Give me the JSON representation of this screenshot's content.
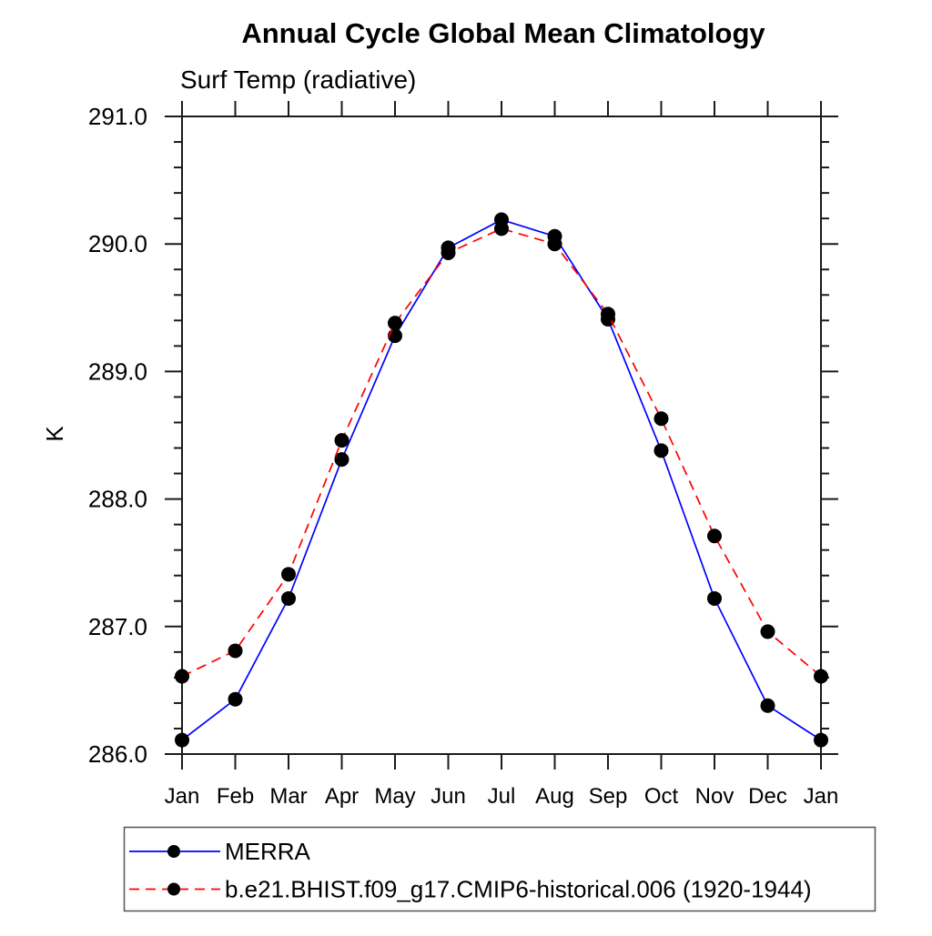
{
  "chart_data": {
    "type": "line",
    "title": "Annual Cycle Global Mean Climatology",
    "subtitle": "Surf Temp (radiative)",
    "ylabel": "K",
    "ylim": [
      286.0,
      291.0
    ],
    "ytick_interval": 1.0,
    "yminor_interval": 0.2,
    "grid": false,
    "legend_position": "bottom-left",
    "categories": [
      "Jan",
      "Feb",
      "Mar",
      "Apr",
      "May",
      "Jun",
      "Jul",
      "Aug",
      "Sep",
      "Oct",
      "Nov",
      "Dec",
      "Jan"
    ],
    "series": [
      {
        "name": "MERRA",
        "color": "#0000ff",
        "line_style": "solid",
        "marker": "filled-circle",
        "marker_color": "#000000",
        "values": [
          286.11,
          286.43,
          287.22,
          288.31,
          289.28,
          289.97,
          290.19,
          290.06,
          289.41,
          288.38,
          287.22,
          286.38,
          286.11
        ]
      },
      {
        "name": "b.e21.BHIST.f09_g17.CMIP6-historical.006 (1920-1944)",
        "color": "#ff0000",
        "line_style": "dashed",
        "marker": "filled-circle",
        "marker_color": "#000000",
        "values": [
          286.61,
          286.81,
          287.41,
          288.46,
          289.38,
          289.93,
          290.12,
          290.0,
          289.45,
          288.63,
          287.71,
          286.96,
          286.61
        ]
      }
    ]
  }
}
